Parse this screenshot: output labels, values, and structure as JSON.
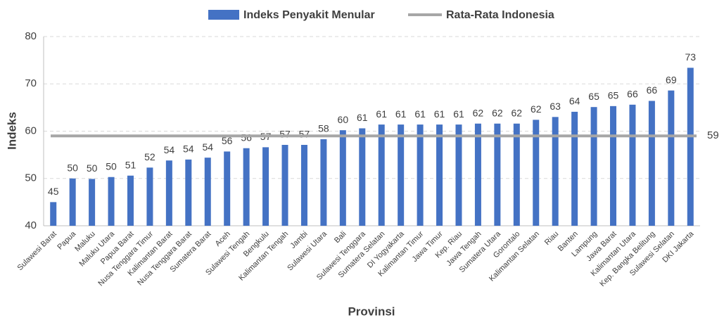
{
  "chart_data": {
    "type": "bar",
    "x_label": "Provinsi",
    "y_label": "Indeks",
    "categories": [
      "Sulawesi Barat",
      "Papua",
      "Maluku",
      "Maluku Utara",
      "Papua Barat",
      "Nusa Tenggara Timur",
      "Kalimantan Barat",
      "Nusa Tenggara Barat",
      "Sumatera Barat",
      "Aceh",
      "Sulawesi Tengah",
      "Bengkulu",
      "Kalimantan Tengah",
      "Jambi",
      "Sulawesi Utara",
      "Bali",
      "Sulawesi Tenggara",
      "Sumatera Selatan",
      "DI Yogyakarta",
      "Kalimantan Timur",
      "Jawa Timur",
      "Kep. Riau",
      "Jawa Tengah",
      "Sumatera Utara",
      "Gorontalo",
      "Kalimantan Selatan",
      "Riau",
      "Banten",
      "Lampung",
      "Jawa Barat",
      "Kalimantan Utara",
      "Kep. Bangka Belitung",
      "Sulawesi Selatan",
      "DKI Jakarta"
    ],
    "series": [
      {
        "name": "Indeks Penyakit Menular",
        "color": "#4472c4",
        "values": [
          45.0,
          50.0,
          49.9,
          50.3,
          50.6,
          52.3,
          53.8,
          54.0,
          54.4,
          55.7,
          56.4,
          56.6,
          57.1,
          57.1,
          58.3,
          60.2,
          60.6,
          61.4,
          61.4,
          61.4,
          61.4,
          61.4,
          61.6,
          61.6,
          61.6,
          62.4,
          63.0,
          64.1,
          65.1,
          65.3,
          65.6,
          66.4,
          68.6,
          73.4
        ],
        "value_labels": [
          "45",
          "50",
          "50",
          "50",
          "51",
          "52",
          "54",
          "54",
          "54",
          "56",
          "56",
          "57",
          "57",
          "57",
          "58",
          "60",
          "61",
          "61",
          "61",
          "61",
          "61",
          "61",
          "62",
          "62",
          "62",
          "62",
          "63",
          "64",
          "65",
          "65",
          "66",
          "66",
          "69",
          "73"
        ]
      }
    ],
    "reference_line": {
      "name": "Rata-Rata Indonesia",
      "value": 59,
      "color": "#a6a6a6",
      "label_color": "#ff0000"
    },
    "ylim": [
      40,
      80
    ],
    "yticks": [
      40,
      50,
      60,
      70,
      80
    ],
    "grid": true,
    "legend": "top"
  }
}
